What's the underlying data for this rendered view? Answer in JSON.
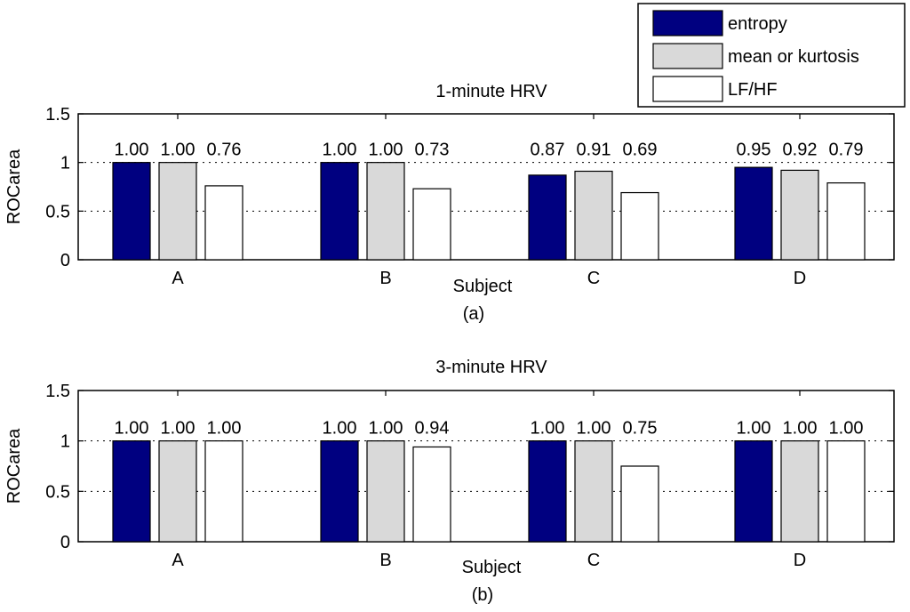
{
  "chart_data": [
    {
      "type": "bar",
      "title": "1-minute HRV",
      "xlabel": "Subject",
      "caption": "(a)",
      "ylabel": "ROCarea",
      "ylim": [
        0,
        1.5
      ],
      "yticks": [
        0,
        0.5,
        1,
        1.5
      ],
      "ytick_labels": [
        "0",
        "0.5",
        "1",
        "1.5"
      ],
      "grid_lines_at": [
        0.5,
        1
      ],
      "categories": [
        "A",
        "B",
        "C",
        "D"
      ],
      "series": [
        {
          "name": "entropy",
          "values": [
            1.0,
            1.0,
            0.87,
            0.95
          ],
          "labels": [
            "1.00",
            "1.00",
            "0.87",
            "0.95"
          ]
        },
        {
          "name": "mean or kurtosis",
          "values": [
            1.0,
            1.0,
            0.91,
            0.92
          ],
          "labels": [
            "1.00",
            "1.00",
            "0.91",
            "0.92"
          ]
        },
        {
          "name": "LF/HF",
          "values": [
            0.76,
            0.73,
            0.69,
            0.79
          ],
          "labels": [
            "0.76",
            "0.73",
            "0.69",
            "0.79"
          ]
        }
      ]
    },
    {
      "type": "bar",
      "title": "3-minute HRV",
      "xlabel": "Subject",
      "caption": "(b)",
      "ylabel": "ROCarea",
      "ylim": [
        0,
        1.5
      ],
      "yticks": [
        0,
        0.5,
        1,
        1.5
      ],
      "ytick_labels": [
        "0",
        "0.5",
        "1",
        "1.5"
      ],
      "grid_lines_at": [
        0.5,
        1
      ],
      "categories": [
        "A",
        "B",
        "C",
        "D"
      ],
      "series": [
        {
          "name": "entropy",
          "values": [
            1.0,
            1.0,
            1.0,
            1.0
          ],
          "labels": [
            "1.00",
            "1.00",
            "1.00",
            "1.00"
          ]
        },
        {
          "name": "mean or kurtosis",
          "values": [
            1.0,
            1.0,
            1.0,
            1.0
          ],
          "labels": [
            "1.00",
            "1.00",
            "1.00",
            "1.00"
          ]
        },
        {
          "name": "LF/HF",
          "values": [
            1.0,
            0.94,
            0.75,
            1.0
          ],
          "labels": [
            "1.00",
            "0.94",
            "0.75",
            "1.00"
          ]
        }
      ]
    }
  ],
  "legend": {
    "placement": "top-right",
    "entries": [
      {
        "label": "entropy",
        "color": "#000080"
      },
      {
        "label": "mean or kurtosis",
        "color": "#d9d9d9"
      },
      {
        "label": "LF/HF",
        "color": "#ffffff"
      }
    ]
  },
  "series_colors": [
    "#000080",
    "#d9d9d9",
    "#ffffff"
  ]
}
